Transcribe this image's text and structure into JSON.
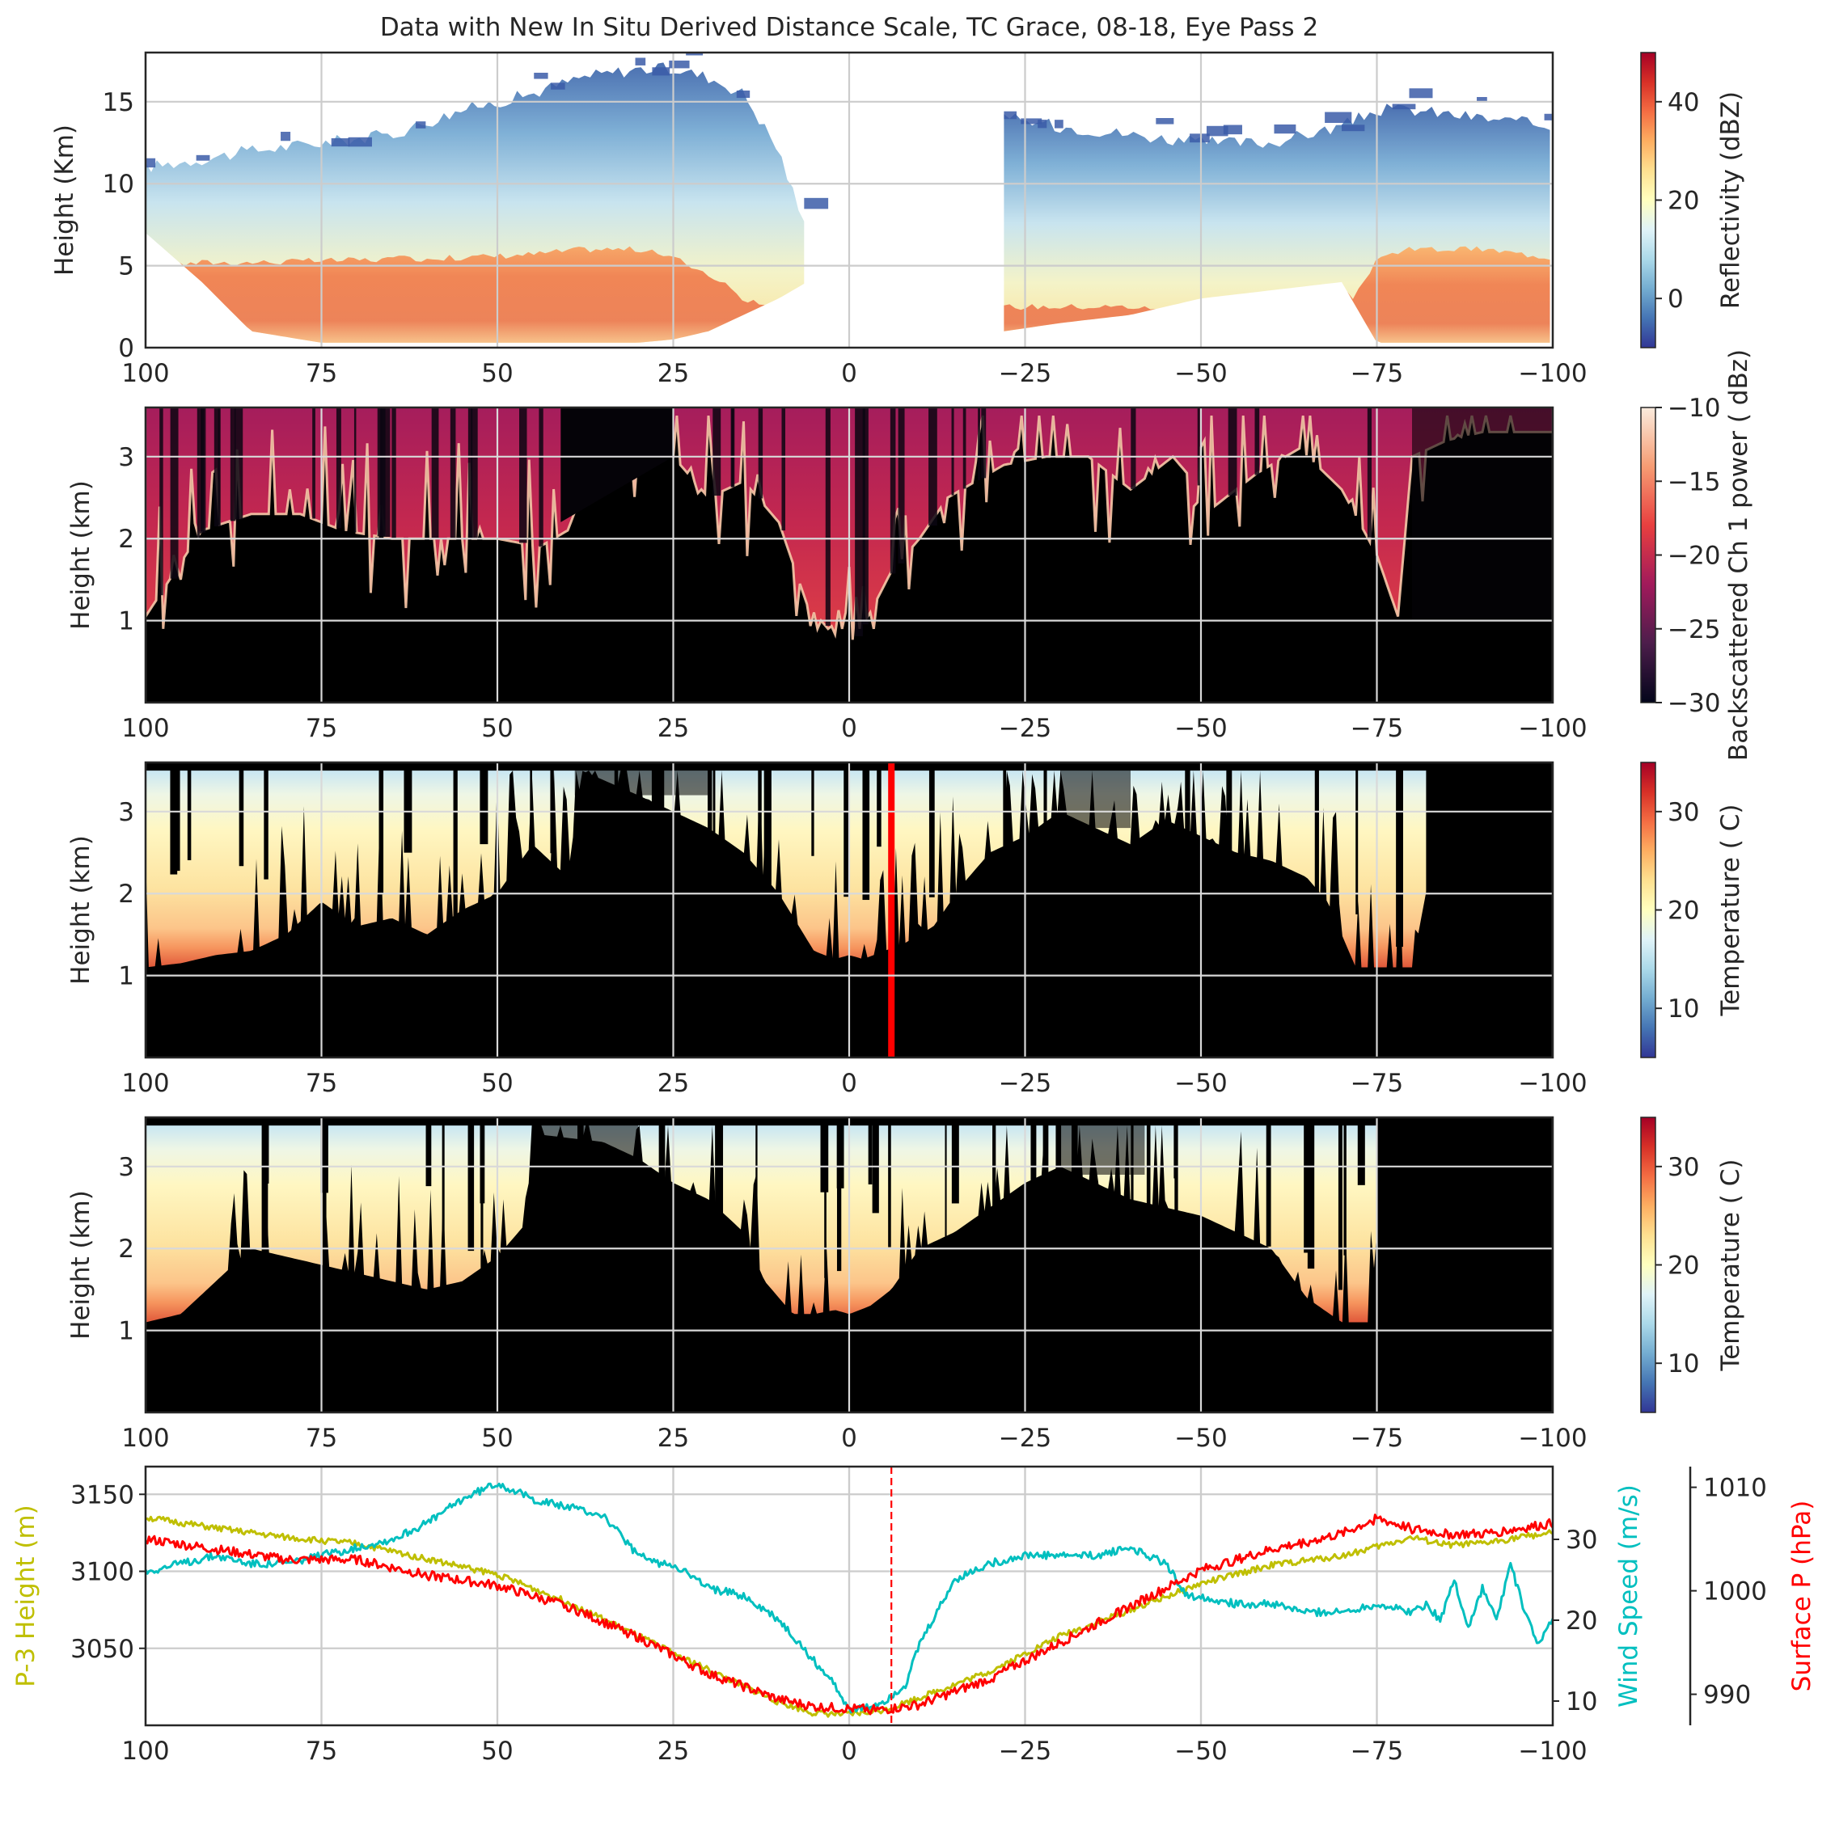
{
  "title": "Data with New In Situ Derived Distance Scale, TC Grace, 08-18, Eye Pass 2",
  "colors": {
    "frame": "#262626",
    "grid": "#cccccc",
    "black": "#000000",
    "p3": "#bfbf00",
    "wind": "#00bfbf",
    "pressure": "#ff0000",
    "marker": "#ff0000"
  },
  "chart_data": [
    {
      "type": "heatmap",
      "name": "reflectivity",
      "ylabel": "Height (Km)",
      "xlim": [
        100,
        -100
      ],
      "ylim": [
        0,
        18
      ],
      "xticks": [
        "100",
        "75",
        "50",
        "25",
        "0",
        "−25",
        "−50",
        "−75",
        "−100"
      ],
      "xtick_values": [
        100,
        75,
        50,
        25,
        0,
        -25,
        -50,
        -75,
        -100
      ],
      "yticks": [
        "0",
        "5",
        "10",
        "15"
      ],
      "ytick_values": [
        0,
        5,
        10,
        15
      ],
      "grid": true,
      "colorbar": {
        "label": "Reflectivity (dBZ)",
        "range": [
          -10,
          50
        ],
        "ticks": [
          "0",
          "20",
          "40"
        ],
        "tick_values": [
          0,
          20,
          40
        ],
        "colormap": "RdYlBu_r"
      },
      "segments": [
        {
          "x": [
            100,
            92,
            85,
            75,
            65,
            55,
            45,
            38,
            30,
            25,
            20,
            15,
            10,
            6
          ],
          "top": [
            11,
            11.5,
            12,
            12.5,
            13,
            14.5,
            15.5,
            16.5,
            17,
            17,
            16.5,
            15.5,
            12,
            7
          ],
          "base": [
            7,
            4,
            1,
            0.3,
            0.3,
            0.3,
            0.3,
            0.3,
            0.3,
            0.5,
            1,
            2,
            3,
            4
          ],
          "core_top": [
            4.8,
            5.2,
            5.2,
            5.3,
            5.4,
            5.5,
            5.7,
            6,
            6,
            5.5,
            4.5,
            3,
            2,
            1.5
          ]
        },
        {
          "x": [
            -22,
            -30,
            -40,
            -50,
            -60,
            -70,
            -75,
            -80,
            -90,
            -100
          ],
          "top": [
            14,
            13.5,
            13,
            12.5,
            12.5,
            13.5,
            14.5,
            14.5,
            14,
            13.5
          ],
          "base": [
            1,
            1.5,
            2,
            3,
            3.5,
            4,
            0.3,
            0.3,
            0.3,
            0.3
          ],
          "core_top": [
            2.5,
            2.5,
            2.5,
            2,
            1.5,
            1.5,
            5.5,
            6,
            6,
            5.5
          ]
        }
      ]
    },
    {
      "type": "heatmap",
      "name": "backscatter",
      "ylabel": "Height (km)",
      "xlim": [
        100,
        -100
      ],
      "ylim": [
        0,
        3.6
      ],
      "xticks": [
        "100",
        "75",
        "50",
        "25",
        "0",
        "−25",
        "−50",
        "−75",
        "−100"
      ],
      "xtick_values": [
        100,
        75,
        50,
        25,
        0,
        -25,
        -50,
        -75,
        -100
      ],
      "yticks": [
        "1",
        "2",
        "3"
      ],
      "ytick_values": [
        1,
        2,
        3
      ],
      "grid": true,
      "colorbar": {
        "label": "Backscattered Ch 1 power ( dBz)",
        "range": [
          -30,
          -10
        ],
        "ticks": [
          "−10",
          "−15",
          "−20",
          "−25",
          "−30"
        ],
        "tick_values": [
          -10,
          -15,
          -20,
          -25,
          -30
        ],
        "colormap": "rocket"
      },
      "cloud_top": {
        "x": [
          100,
          92,
          85,
          78,
          72,
          65,
          58,
          50,
          44,
          40,
          36,
          30,
          25,
          20,
          15,
          10,
          6,
          3,
          0,
          -3,
          -6,
          -10,
          -14,
          -18,
          -22,
          -28,
          -34,
          -40,
          -46,
          -52,
          -58,
          -64,
          -70,
          -75,
          -78,
          -80,
          -85,
          -90,
          -95,
          -100
        ],
        "y": [
          1.05,
          2.1,
          2.3,
          2.3,
          2.1,
          2.0,
          2.0,
          2.0,
          1.9,
          2.1,
          3.0,
          3.1,
          3.0,
          2.5,
          2.7,
          2.2,
          1.2,
          0.9,
          0.7,
          1.1,
          1.6,
          2.0,
          2.5,
          2.7,
          2.9,
          3.0,
          3.0,
          2.6,
          3.0,
          2.4,
          2.8,
          3.1,
          2.6,
          1.8,
          1.05,
          3.0,
          3.2,
          3.3,
          3.3,
          3.3
        ]
      }
    },
    {
      "type": "heatmap",
      "name": "temperature-1",
      "ylabel": "Height (km)",
      "xlim": [
        100,
        -100
      ],
      "ylim": [
        0,
        3.6
      ],
      "xticks": [
        "100",
        "75",
        "50",
        "25",
        "0",
        "−25",
        "−50",
        "−75",
        "−100"
      ],
      "xtick_values": [
        100,
        75,
        50,
        25,
        0,
        -25,
        -50,
        -75,
        -100
      ],
      "yticks": [
        "1",
        "2",
        "3"
      ],
      "ytick_values": [
        1,
        2,
        3
      ],
      "grid": true,
      "marker_x": -6,
      "colorbar": {
        "label": "Temperature ( C)",
        "range": [
          5,
          35
        ],
        "ticks": [
          "10",
          "20",
          "30"
        ],
        "tick_values": [
          10,
          20,
          30
        ],
        "colormap": "RdYlBu_r"
      },
      "surface": {
        "x": [
          100,
          95,
          90,
          85,
          80,
          75,
          70,
          65,
          60,
          55,
          50,
          45,
          40,
          38,
          30,
          25,
          20,
          15,
          10,
          5,
          2,
          0,
          -2,
          -5,
          -8,
          -12,
          -16,
          -20,
          -25,
          -30,
          -35,
          -40,
          -45,
          -50,
          -55,
          -60,
          -65,
          -68,
          -72,
          -76,
          -80,
          -85,
          -90,
          -95,
          -100
        ],
        "y": [
          1.1,
          1.15,
          1.25,
          1.3,
          1.5,
          1.9,
          1.6,
          1.7,
          1.5,
          1.8,
          2.0,
          2.6,
          2.2,
          3.5,
          3.2,
          3.0,
          2.8,
          2.5,
          2.0,
          1.3,
          1.2,
          1.25,
          1.2,
          1.3,
          1.4,
          1.6,
          2.1,
          2.5,
          2.7,
          3.0,
          2.8,
          2.6,
          2.9,
          2.7,
          2.5,
          2.4,
          2.2,
          1.9,
          1.1,
          1.1,
          1.1,
          3.4,
          3.5,
          3.5,
          3.5
        ],
        "tops": {
          "x": [
            100,
            40,
            38,
            -80,
            -82,
            -100
          ],
          "y": [
            3.5,
            3.5,
            3.5,
            3.5,
            3.5,
            3.5
          ]
        }
      }
    },
    {
      "type": "heatmap",
      "name": "temperature-2",
      "ylabel": "Height (km)",
      "xlim": [
        100,
        -100
      ],
      "ylim": [
        0,
        3.6
      ],
      "xticks": [
        "100",
        "75",
        "50",
        "25",
        "0",
        "−25",
        "−50",
        "−75",
        "−100"
      ],
      "xtick_values": [
        100,
        75,
        50,
        25,
        0,
        -25,
        -50,
        -75,
        -100
      ],
      "yticks": [
        "1",
        "2",
        "3"
      ],
      "ytick_values": [
        1,
        2,
        3
      ],
      "grid": true,
      "colorbar": {
        "label": "Temperature ( C)",
        "range": [
          5,
          35
        ],
        "ticks": [
          "10",
          "20",
          "30"
        ],
        "tick_values": [
          10,
          20,
          30
        ],
        "colormap": "RdYlBu_r"
      },
      "surface": {
        "x": [
          100,
          95,
          90,
          85,
          80,
          75,
          70,
          65,
          60,
          55,
          50,
          46,
          45,
          35,
          30,
          25,
          20,
          15,
          12,
          8,
          5,
          2,
          0,
          -3,
          -6,
          -10,
          -15,
          -20,
          -25,
          -30,
          -35,
          -40,
          -45,
          -50,
          -55,
          -60,
          -65,
          -70,
          -74,
          -76,
          -80,
          -90,
          -100
        ],
        "y": [
          1.1,
          1.2,
          1.6,
          2.0,
          1.9,
          1.8,
          1.7,
          1.6,
          1.5,
          1.6,
          1.9,
          2.3,
          3.4,
          3.3,
          3.1,
          2.8,
          2.6,
          2.2,
          1.6,
          1.2,
          1.2,
          1.25,
          1.2,
          1.3,
          1.5,
          2.0,
          2.2,
          2.5,
          2.8,
          3.0,
          2.8,
          2.6,
          2.5,
          2.4,
          2.2,
          2.0,
          1.4,
          1.1,
          1.1,
          3.3,
          3.4,
          3.5,
          3.5
        ]
      }
    },
    {
      "type": "line",
      "name": "flight-level",
      "xlim": [
        100,
        -100
      ],
      "xticks": [
        "100",
        "75",
        "50",
        "25",
        "0",
        "−25",
        "−50",
        "−75",
        "−100"
      ],
      "xtick_values": [
        100,
        75,
        50,
        25,
        0,
        -25,
        -50,
        -75,
        -100
      ],
      "marker_x": -6,
      "grid": true,
      "axes": [
        {
          "label": "P-3 Height (m)",
          "side": "left",
          "ylim": [
            3000,
            3168
          ],
          "ticks": [
            "3050",
            "3100",
            "3150"
          ],
          "tick_values": [
            3050,
            3100,
            3150
          ],
          "color": "#bfbf00"
        },
        {
          "label": "Wind Speed (m/s)",
          "side": "right",
          "ylim": [
            7,
            39
          ],
          "ticks": [
            "10",
            "20",
            "30"
          ],
          "tick_values": [
            10,
            20,
            30
          ],
          "color": "#00bfbf"
        },
        {
          "label": "Surface P (hPa)",
          "side": "right-outer",
          "ylim": [
            987,
            1012
          ],
          "ticks": [
            "990",
            "1000",
            "1010"
          ],
          "tick_values": [
            990,
            1000,
            1010
          ],
          "color": "#ff0000"
        }
      ],
      "series": [
        {
          "axis": 0,
          "color": "#bfbf00",
          "x": [
            100,
            90,
            80,
            70,
            60,
            50,
            40,
            30,
            20,
            10,
            5,
            0,
            -5,
            -10,
            -20,
            -30,
            -40,
            -50,
            -60,
            -70,
            -75,
            -80,
            -85,
            -90,
            -95,
            -100
          ],
          "values": [
            3135,
            3128,
            3122,
            3118,
            3108,
            3098,
            3080,
            3058,
            3036,
            3015,
            3008,
            3007,
            3010,
            3018,
            3035,
            3058,
            3075,
            3092,
            3104,
            3110,
            3116,
            3122,
            3117,
            3118,
            3122,
            3125
          ]
        },
        {
          "axis": 1,
          "color": "#00bfbf",
          "x": [
            100,
            95,
            90,
            85,
            80,
            75,
            70,
            65,
            60,
            55,
            50,
            45,
            40,
            35,
            32,
            30,
            27,
            25,
            20,
            15,
            10,
            5,
            2,
            0,
            -2,
            -5,
            -8,
            -10,
            -15,
            -20,
            -25,
            -30,
            -35,
            -40,
            -45,
            -48,
            -50,
            -55,
            -60,
            -65,
            -70,
            -75,
            -80,
            -82,
            -84,
            -86,
            -88,
            -90,
            -92,
            -94,
            -96,
            -98,
            -100
          ],
          "values": [
            26,
            27,
            28,
            27,
            27,
            28,
            29,
            30,
            32,
            35,
            37,
            35,
            34,
            33,
            30,
            28,
            27,
            27,
            24,
            23,
            20,
            15,
            12,
            9,
            9,
            10,
            12,
            17,
            25,
            27,
            28,
            28,
            28,
            29,
            27,
            23,
            23,
            22,
            22,
            21,
            21,
            22,
            21,
            22,
            20,
            25,
            19,
            24,
            20,
            27,
            21,
            17,
            20
          ]
        },
        {
          "axis": 2,
          "color": "#ff0000",
          "x": [
            100,
            90,
            80,
            70,
            60,
            50,
            40,
            30,
            20,
            10,
            5,
            0,
            -5,
            -10,
            -20,
            -30,
            -40,
            -50,
            -60,
            -70,
            -75,
            -80,
            -85,
            -90,
            -95,
            -100
          ],
          "values": [
            1005,
            1004,
            1003,
            1003,
            1001.5,
            1000.5,
            998.5,
            995.5,
            992,
            989.5,
            988.8,
            988.6,
            988.5,
            989,
            991.5,
            995,
            998.5,
            1002,
            1004,
            1005.5,
            1007,
            1006,
            1005.5,
            1005.5,
            1006,
            1006.5
          ]
        }
      ]
    }
  ]
}
